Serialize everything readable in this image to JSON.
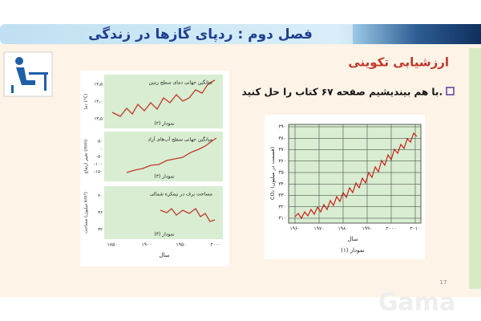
{
  "header": {
    "title": "فصل دوم : ردپای گازها در زندگی"
  },
  "section_title": "ارزشیابی تکوینی",
  "bullet": "با هم بیندیشیم صفحه ۶۷ کتاب را حل کنید.",
  "left_figure": {
    "panels": [
      {
        "title": "میانگین جهانی دمای سطح زمین",
        "y_label": "دما (°C)",
        "yticks": [
          "۱۴٫۵",
          "۱۴٫۰",
          "۱۳٫۵"
        ],
        "caption": "نمودار (۲)"
      },
      {
        "title": "میانگین جهانی سطح آب‌های آزاد",
        "y_label": "تغییر ارتفاع (mm)",
        "yticks": [
          "۵۰",
          "۰",
          "-۵۰",
          "-۱۰۰",
          "-۱۵۰"
        ],
        "caption": "نمودار (۳)"
      },
      {
        "title": "مساحت برف در نیمکره شمالی",
        "y_label": "مساحت (میلیون km²)",
        "yticks": [
          "۴۰",
          "۳۶",
          "۳۲"
        ],
        "caption": "نمودار (۴)"
      }
    ],
    "xticks": [
      "۱۸۵۰",
      "۱۹۰۰",
      "۱۹۵۰",
      "۲۰۰۰"
    ],
    "x_label": "سال"
  },
  "right_figure": {
    "yticks": [
      "۳۹۰",
      "۳۸۰",
      "۳۷۰",
      "۳۶۰",
      "۳۵۰",
      "۳۴۰",
      "۳۳۰",
      "۳۲۰",
      "۳۱۰"
    ],
    "y_label": "CO₂ (قسمت در میلیون)",
    "xticks": [
      "۱۹۶۰",
      "۱۹۷۰",
      "۱۹۸۰",
      "۱۹۹۰",
      "۲۰۰۰",
      "۲۰۱۰"
    ],
    "x_label": "سال",
    "caption": "نمودار (۱)"
  },
  "page_number": "17"
}
